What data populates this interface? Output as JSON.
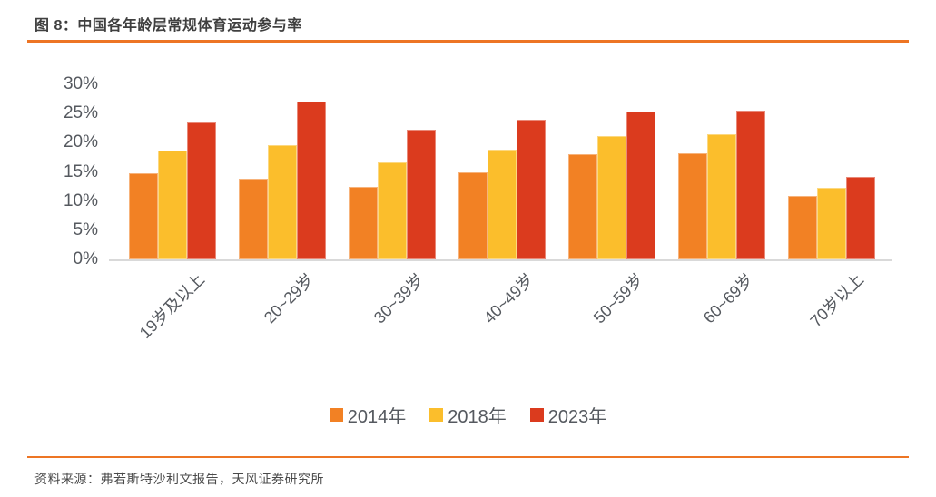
{
  "header": {
    "figure_title": "图 8：中国各年龄层常规体育运动参与率"
  },
  "chart_data": {
    "type": "bar",
    "title": "中国各年龄层常规体育运动参与率",
    "categories": [
      "19岁及以上",
      "20~29岁",
      "30~39岁",
      "40~49岁",
      "50~59岁",
      "60~69岁",
      "70岁以上"
    ],
    "series": [
      {
        "name": "2014年",
        "color": "#F28124",
        "values": [
          14.8,
          13.8,
          12.4,
          15.0,
          18.0,
          18.2,
          10.9
        ]
      },
      {
        "name": "2018年",
        "color": "#FBBE2C",
        "values": [
          18.7,
          19.6,
          16.6,
          18.8,
          21.2,
          21.4,
          12.3
        ]
      },
      {
        "name": "2023年",
        "color": "#DB3B1E",
        "values": [
          23.5,
          27.0,
          22.2,
          23.9,
          25.3,
          25.5,
          14.1
        ]
      }
    ],
    "xlabel": "",
    "ylabel": "",
    "ylim": [
      0,
      30
    ],
    "y_ticks": [
      0,
      5,
      10,
      15,
      20,
      25,
      30
    ],
    "y_tick_suffix": "%",
    "grid": false,
    "legend_position": "bottom"
  },
  "footer": {
    "source_note": "资料来源：弗若斯特沙利文报告，天风证券研究所"
  },
  "style": {
    "accent_rule_color": "#ED7524",
    "axis_text_color": "#55595F",
    "baseline_color": "#D9D9D9"
  }
}
